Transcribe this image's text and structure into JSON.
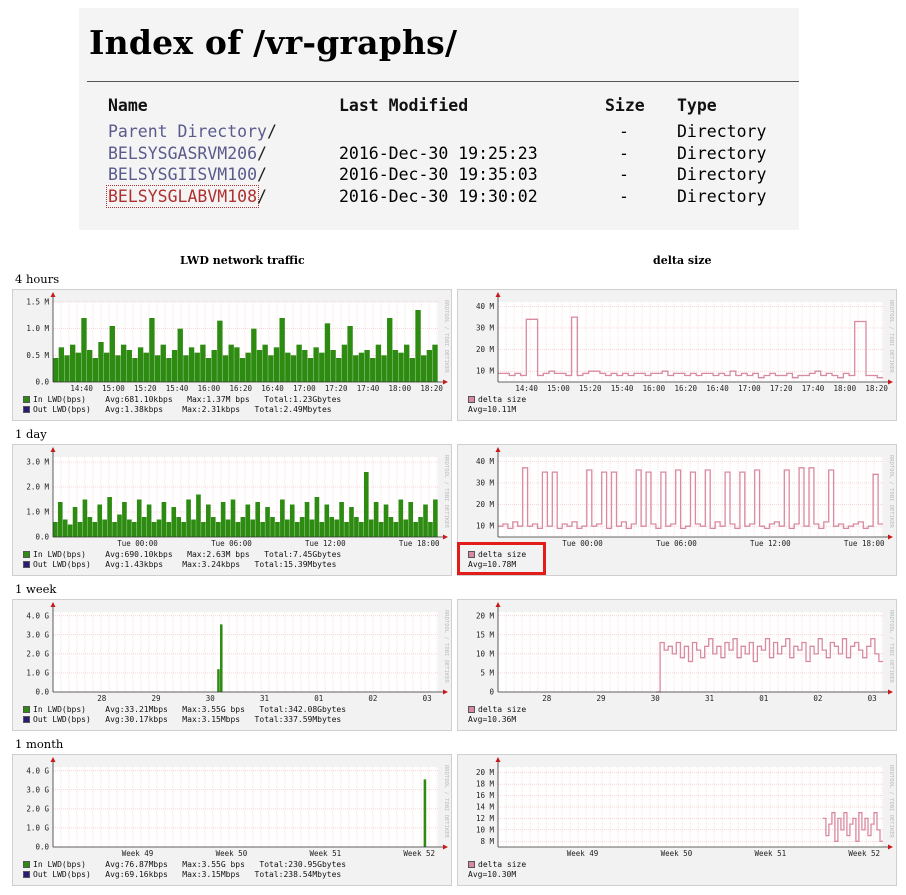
{
  "index": {
    "title": "Index of /vr-graphs/",
    "headers": {
      "name": "Name",
      "modified": "Last Modified",
      "size": "Size",
      "type": "Type"
    },
    "rows": [
      {
        "name": "Parent Directory",
        "suffix": "/",
        "modified": "",
        "size": "-",
        "type": "Directory"
      },
      {
        "name": "BELSYSGASRVM206",
        "suffix": "/",
        "modified": "2016-Dec-30 19:25:23",
        "size": "-",
        "type": "Directory"
      },
      {
        "name": "BELSYSGIISVM100",
        "suffix": "/",
        "modified": "2016-Dec-30 19:35:03",
        "size": "-",
        "type": "Directory"
      },
      {
        "name": "BELSYSGLABVM108",
        "suffix": "/",
        "modified": "2016-Dec-30 19:30:02",
        "size": "-",
        "type": "Directory"
      }
    ]
  },
  "columns": {
    "left": "LWD network traffic",
    "right": "delta size"
  },
  "colors": {
    "in_lwd": "#2e8b12",
    "out_lwd": "#2a1a7a",
    "delta": "#d98aa0",
    "axis_arrow": "#c81a1a",
    "grid": "#f0b0b0",
    "highlight": "#e21b1b"
  },
  "watermark": "RRDTOOL / TOBI OETIKER",
  "periods": [
    {
      "label": "4 hours",
      "traffic": {
        "yticks": [
          "1.5 M",
          "1.0 M",
          "0.5 M",
          "0.0"
        ],
        "ymax": 1.5,
        "xticks": [
          "14:40",
          "15:00",
          "15:20",
          "15:40",
          "16:00",
          "16:20",
          "16:40",
          "17:00",
          "17:20",
          "17:40",
          "18:00",
          "18:20"
        ],
        "legend": {
          "in": "In LWD(bps)    Avg:681.10kbps   Max:1.37M bps   Total:1.23Gbytes",
          "out": "Out LWD(bps)   Avg:1.38kbps    Max:2.31kbps   Total:2.49Mbytes"
        },
        "chart_data": {
          "type": "bar",
          "ylim": [
            0,
            1.5
          ],
          "values": [
            0.45,
            0.65,
            0.5,
            0.7,
            0.55,
            1.2,
            0.6,
            0.45,
            0.75,
            0.55,
            1.05,
            0.5,
            0.7,
            0.6,
            0.45,
            0.65,
            0.55,
            1.2,
            0.5,
            0.7,
            0.45,
            0.6,
            1.0,
            0.5,
            0.65,
            0.55,
            0.7,
            0.45,
            0.6,
            1.15,
            0.5,
            0.7,
            0.65,
            0.45,
            0.55,
            1.0,
            0.6,
            0.7,
            0.5,
            0.65,
            1.2,
            0.55,
            0.5,
            0.7,
            0.6,
            0.45,
            0.65,
            0.55,
            1.1,
            0.6,
            0.45,
            0.7,
            1.05,
            0.5,
            0.55,
            0.6,
            0.45,
            0.7,
            0.5,
            1.2,
            0.6,
            0.55,
            0.7,
            0.45,
            1.35,
            0.5,
            0.6,
            0.7
          ]
        }
      },
      "delta": {
        "yticks": [
          "40 M",
          "30 M",
          "20 M",
          "10 M"
        ],
        "ymin": 5,
        "ymax": 42,
        "xticks": [
          "14:40",
          "15:00",
          "15:20",
          "15:40",
          "16:00",
          "16:20",
          "16:40",
          "17:00",
          "17:20",
          "17:40",
          "18:00",
          "18:20"
        ],
        "legend": {
          "name": "delta size",
          "avg": "Avg=10.11M"
        },
        "chart_data": {
          "type": "line",
          "ylim": [
            5,
            42
          ],
          "values": [
            9,
            9,
            8,
            9,
            8,
            34,
            34,
            8,
            9,
            10,
            9,
            9,
            8,
            35,
            8,
            9,
            10,
            10,
            9,
            8,
            9,
            8,
            9,
            8,
            9,
            9,
            8,
            9,
            9,
            10,
            8,
            9,
            9,
            8,
            9,
            8,
            9,
            9,
            8,
            9,
            8,
            10,
            8,
            9,
            8,
            9,
            7,
            8,
            9,
            8,
            8,
            9,
            7,
            8,
            8,
            9,
            10,
            8,
            9,
            8,
            7,
            9,
            8,
            33,
            33,
            8,
            8,
            7
          ]
        }
      }
    },
    {
      "label": "1 day",
      "traffic": {
        "yticks": [
          "3.0 M",
          "2.0 M",
          "1.0 M",
          "0.0"
        ],
        "ymax": 3.2,
        "xticks": [
          "Tue 00:00",
          "Tue 06:00",
          "Tue 12:00",
          "Tue 18:00"
        ],
        "legend": {
          "in": "In LWD(bps)    Avg:690.10kbps   Max:2.63M bps   Total:7.45Gbytes",
          "out": "Out LWD(bps)   Avg:1.43kbps    Max:3.24kbps   Total:15.39Mbytes"
        },
        "chart_data": {
          "type": "bar",
          "ylim": [
            0,
            3.2
          ],
          "values": [
            0.6,
            1.4,
            0.7,
            0.5,
            1.2,
            0.6,
            1.5,
            0.8,
            0.6,
            1.3,
            0.7,
            1.6,
            0.6,
            0.9,
            1.4,
            0.7,
            0.6,
            1.5,
            0.8,
            1.3,
            0.6,
            0.7,
            1.4,
            0.6,
            1.2,
            0.8,
            0.6,
            1.5,
            0.7,
            1.7,
            0.6,
            1.3,
            0.8,
            0.6,
            1.4,
            0.7,
            1.5,
            0.6,
            0.8,
            1.3,
            0.7,
            1.4,
            0.6,
            1.2,
            0.8,
            0.6,
            1.5,
            0.7,
            1.3,
            0.6,
            0.8,
            1.4,
            0.7,
            1.6,
            0.6,
            1.3,
            0.8,
            0.7,
            1.4,
            0.6,
            1.2,
            0.8,
            0.6,
            2.6,
            0.7,
            1.4,
            0.6,
            1.3,
            0.8,
            0.6,
            1.5,
            0.7,
            1.4,
            0.6,
            0.8,
            1.3,
            0.6,
            1.5
          ]
        }
      },
      "delta": {
        "yticks": [
          "40 M",
          "30 M",
          "20 M",
          "10 M"
        ],
        "ymin": 5,
        "ymax": 42,
        "xticks": [
          "Tue 00:00",
          "Tue 06:00",
          "Tue 12:00",
          "Tue 18:00"
        ],
        "legend": {
          "name": "delta size",
          "avg": "Avg=10.78M"
        },
        "chart_data": {
          "type": "line",
          "ylim": [
            5,
            42
          ],
          "values": [
            10,
            11,
            9,
            12,
            10,
            37,
            10,
            11,
            9,
            35,
            10,
            35,
            9,
            11,
            10,
            12,
            9,
            10,
            36,
            10,
            11,
            35,
            9,
            35,
            10,
            12,
            9,
            11,
            36,
            10,
            35,
            11,
            9,
            35,
            10,
            11,
            36,
            9,
            10,
            35,
            11,
            10,
            36,
            9,
            12,
            10,
            35,
            11,
            9,
            35,
            10,
            11,
            36,
            10,
            9,
            11,
            12,
            10,
            36,
            9,
            11,
            37,
            10,
            37,
            11,
            9,
            12,
            36,
            10,
            11,
            9,
            10,
            11,
            12,
            9,
            10,
            34,
            11
          ]
        }
      }
    },
    {
      "label": "1 week",
      "traffic": {
        "yticks": [
          "4.0 G",
          "3.0 G",
          "2.0 G",
          "1.0 G",
          "0.0"
        ],
        "ymax": 4.2,
        "xticks": [
          "28",
          "29",
          "30",
          "31",
          "01",
          "02",
          "03"
        ],
        "legend": {
          "in": "In LWD(bps)    Avg:33.21Mbps   Max:3.55G bps   Total:342.08Gbytes",
          "out": "Out LWD(bps)   Avg:30.17kbps   Max:3.15Mbps   Total:337.59Mbytes"
        },
        "chart_data": {
          "type": "bar",
          "ylim": [
            0,
            4.2
          ],
          "values": [
            0,
            0,
            0,
            0,
            0,
            0,
            0,
            0,
            0,
            0,
            0,
            0,
            0,
            0,
            0,
            0,
            0,
            0,
            0,
            0,
            0,
            0,
            0,
            0,
            0,
            0,
            0,
            0,
            0,
            0,
            0,
            0,
            0,
            0,
            0,
            0,
            0,
            0,
            0,
            0,
            0,
            0,
            0,
            0,
            0,
            0,
            0,
            0,
            0,
            0,
            0,
            0,
            0,
            0,
            0,
            0,
            0,
            0,
            1.2,
            3.55,
            0,
            0,
            0,
            0,
            0,
            0,
            0,
            0,
            0,
            0,
            0,
            0,
            0,
            0,
            0,
            0,
            0,
            0,
            0,
            0,
            0,
            0,
            0,
            0,
            0,
            0,
            0,
            0,
            0,
            0,
            0,
            0,
            0,
            0,
            0,
            0,
            0,
            0,
            0,
            0,
            0,
            0,
            0,
            0,
            0,
            0,
            0,
            0,
            0,
            0,
            0,
            0,
            0,
            0,
            0,
            0,
            0,
            0,
            0,
            0,
            0,
            0,
            0,
            0,
            0,
            0,
            0,
            0,
            0,
            0,
            0,
            0,
            0,
            0,
            0,
            0
          ]
        }
      },
      "delta": {
        "yticks": [
          "20 M",
          "15 M",
          "10 M",
          "5 M",
          "0"
        ],
        "ymin": 0,
        "ymax": 21,
        "xticks": [
          "28",
          "29",
          "30",
          "31",
          "01",
          "02",
          "03"
        ],
        "legend": {
          "name": "delta size",
          "avg": "Avg=10.36M"
        },
        "chart_data": {
          "type": "line",
          "ylim": [
            0,
            21
          ],
          "values": [
            null,
            null,
            null,
            null,
            null,
            null,
            null,
            null,
            null,
            null,
            null,
            null,
            null,
            null,
            null,
            null,
            null,
            null,
            null,
            null,
            null,
            null,
            null,
            null,
            null,
            null,
            null,
            null,
            null,
            null,
            null,
            null,
            null,
            null,
            null,
            null,
            null,
            null,
            null,
            0,
            13,
            11,
            12,
            10,
            13,
            9,
            12,
            8,
            13,
            11,
            9,
            12,
            14,
            10,
            12,
            9,
            13,
            11,
            14,
            9,
            12,
            10,
            13,
            8,
            12,
            11,
            14,
            9,
            13,
            10,
            12,
            14,
            9,
            12,
            11,
            13,
            8,
            12,
            10,
            14,
            11,
            9,
            13,
            12,
            10,
            14,
            9,
            12,
            13,
            11,
            9,
            12,
            14,
            10,
            8
          ]
        }
      }
    },
    {
      "label": "1 month",
      "traffic": {
        "yticks": [
          "4.0 G",
          "3.0 G",
          "2.0 G",
          "1.0 G",
          "0.0"
        ],
        "ymax": 4.2,
        "xticks": [
          "Week 49",
          "Week 50",
          "Week 51",
          "Week 52"
        ],
        "legend": {
          "in": "In LWD(bps)    Avg:76.87Mbps   Max:3.55G bps   Total:230.95Gbytes",
          "out": "Out LWD(bps)   Avg:69.16kbps   Max:3.15Mbps   Total:238.54Mbytes"
        },
        "chart_data": {
          "type": "bar",
          "ylim": [
            0,
            4.2
          ],
          "values": [
            0,
            0,
            0,
            0,
            0,
            0,
            0,
            0,
            0,
            0,
            0,
            0,
            0,
            0,
            0,
            0,
            0,
            0,
            0,
            0,
            0,
            0,
            0,
            0,
            0,
            0,
            0,
            0,
            0,
            0,
            0,
            0,
            0,
            0,
            0,
            0,
            0,
            0,
            0,
            0,
            0,
            0,
            0,
            0,
            0,
            0,
            0,
            0,
            0,
            0,
            0,
            0,
            0,
            0,
            0,
            0,
            0,
            0,
            0,
            0,
            0,
            0,
            0,
            0,
            0,
            0,
            0,
            0,
            0,
            0,
            0,
            0,
            0,
            0,
            0,
            0,
            0,
            0,
            0,
            0,
            0,
            0,
            0,
            0,
            0,
            0,
            0,
            0,
            0,
            0,
            0,
            0,
            0,
            0,
            0,
            0,
            0,
            0,
            0,
            0,
            0,
            0,
            0,
            0,
            0,
            0,
            0,
            0,
            0,
            0,
            0,
            0,
            0,
            0,
            0,
            0,
            0,
            0,
            0,
            0,
            0,
            0,
            0,
            0,
            0,
            0,
            0,
            0,
            0,
            3.55,
            0,
            0,
            0,
            0
          ]
        }
      },
      "delta": {
        "yticks": [
          "20 M",
          "18 M",
          "16 M",
          "14 M",
          "12 M",
          "10 M",
          "8 M"
        ],
        "ymin": 7,
        "ymax": 21,
        "xticks": [
          "Week 49",
          "Week 50",
          "Week 51",
          "Week 52"
        ],
        "legend": {
          "name": "delta size",
          "avg": "Avg=10.30M"
        },
        "chart_data": {
          "type": "line",
          "ylim": [
            7,
            21
          ],
          "values": [
            null,
            null,
            null,
            null,
            null,
            null,
            null,
            null,
            null,
            null,
            null,
            null,
            null,
            null,
            null,
            null,
            null,
            null,
            null,
            null,
            null,
            null,
            null,
            null,
            null,
            null,
            null,
            null,
            null,
            null,
            null,
            null,
            null,
            null,
            null,
            null,
            null,
            null,
            null,
            null,
            null,
            null,
            null,
            null,
            null,
            null,
            null,
            null,
            null,
            null,
            null,
            null,
            null,
            null,
            null,
            null,
            null,
            null,
            null,
            null,
            null,
            null,
            null,
            null,
            null,
            null,
            null,
            null,
            null,
            null,
            null,
            null,
            null,
            null,
            null,
            null,
            null,
            null,
            null,
            null,
            null,
            null,
            null,
            null,
            null,
            null,
            null,
            null,
            null,
            null,
            null,
            null,
            null,
            null,
            null,
            null,
            null,
            null,
            null,
            null,
            null,
            null,
            null,
            null,
            null,
            null,
            null,
            null,
            12,
            9,
            11,
            13,
            8,
            12,
            10,
            13,
            9,
            11,
            12,
            8,
            13,
            10,
            12,
            9,
            11,
            13,
            10,
            8
          ]
        }
      }
    }
  ]
}
